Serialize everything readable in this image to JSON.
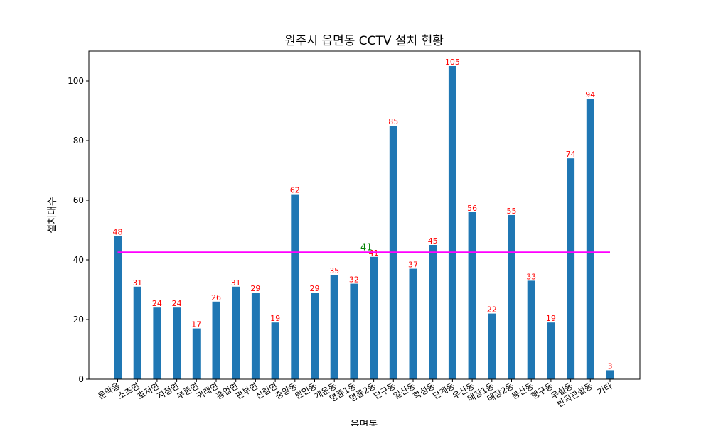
{
  "chart_data": {
    "type": "bar",
    "title": "원주시 읍면동 CCTV 설치 현황",
    "xlabel": "읍면동",
    "ylabel": "설치대수",
    "categories": [
      "문막읍",
      "소초면",
      "호저면",
      "지정면",
      "부론면",
      "귀래면",
      "흥업면",
      "판부면",
      "신림면",
      "중앙동",
      "원인동",
      "개운동",
      "명륜1동",
      "명륜2동",
      "단구동",
      "일산동",
      "학성동",
      "단계동",
      "우산동",
      "태장1동",
      "태장2동",
      "봉산동",
      "행구동",
      "무실동",
      "반곡관설동",
      "기타"
    ],
    "values": [
      48,
      31,
      24,
      24,
      17,
      26,
      31,
      29,
      19,
      62,
      29,
      35,
      32,
      41,
      85,
      37,
      45,
      105,
      56,
      22,
      55,
      33,
      19,
      74,
      94,
      3
    ],
    "ylim": [
      0,
      110
    ],
    "yticks": [
      0,
      20,
      40,
      60,
      80,
      100
    ],
    "bar_color": "#1f77b4",
    "data_label_color": "#ff0000",
    "mean_line": {
      "value": 41,
      "label": "41",
      "color": "#ff00ff",
      "label_color": "#008000"
    },
    "grid": false,
    "legend": "none"
  }
}
